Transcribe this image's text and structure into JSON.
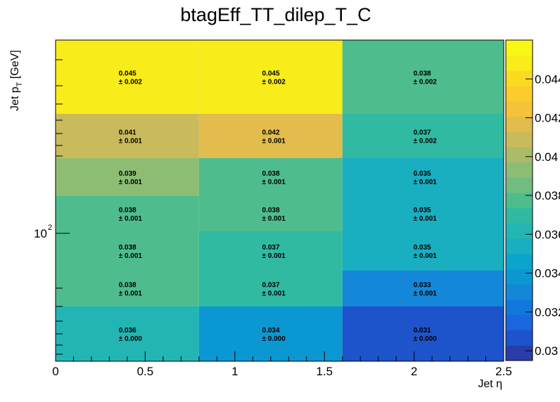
{
  "chart_data": {
    "type": "heatmap",
    "title": "btagEff_TT_dilep_T_C",
    "xlabel": "Jet η",
    "ylabel_main": "Jet p",
    "ylabel_sub": "T",
    "ylabel_unit": " [GeV]",
    "x_edges": [
      0,
      0.8,
      1.6,
      2.5
    ],
    "x_ticks": [
      "0",
      "0.5",
      "1",
      "1.5",
      "2",
      "2.5"
    ],
    "x_tick_values": [
      0,
      0.5,
      1,
      1.5,
      2,
      2.5
    ],
    "y_log": true,
    "y_tick_base": "10",
    "y_tick_exp": "2",
    "uncertainty_prefix": "± ",
    "rows": [
      {
        "values": [
          "0.045",
          "0.045",
          "0.038"
        ],
        "errors": [
          "0.002",
          "0.002",
          "0.002"
        ],
        "num": [
          0.045,
          0.045,
          0.038
        ]
      },
      {
        "values": [
          "0.041",
          "0.042",
          "0.037"
        ],
        "errors": [
          "0.001",
          "0.001",
          "0.002"
        ],
        "num": [
          0.041,
          0.042,
          0.037
        ]
      },
      {
        "values": [
          "0.039",
          "0.038",
          "0.035"
        ],
        "errors": [
          "0.001",
          "0.001",
          "0.001"
        ],
        "num": [
          0.039,
          0.038,
          0.035
        ]
      },
      {
        "values": [
          "0.038",
          "0.038",
          "0.035"
        ],
        "errors": [
          "0.001",
          "0.001",
          "0.001"
        ],
        "num": [
          0.038,
          0.038,
          0.035
        ]
      },
      {
        "values": [
          "0.038",
          "0.037",
          "0.035"
        ],
        "errors": [
          "0.001",
          "0.001",
          "0.001"
        ],
        "num": [
          0.038,
          0.037,
          0.035
        ]
      },
      {
        "values": [
          "0.038",
          "0.037",
          "0.033"
        ],
        "errors": [
          "0.001",
          "0.001",
          "0.001"
        ],
        "num": [
          0.038,
          0.037,
          0.033
        ]
      },
      {
        "values": [
          "0.036",
          "0.034",
          "0.031"
        ],
        "errors": [
          "0.000",
          "0.000",
          "0.000"
        ],
        "num": [
          0.036,
          0.034,
          0.031
        ]
      }
    ],
    "zlim": [
      0.0295,
      0.046
    ],
    "colorbar_labels": [
      "0.044",
      "0.042",
      "0.04",
      "0.038",
      "0.036",
      "0.034",
      "0.032",
      "0.03"
    ],
    "colorbar_label_values": [
      0.044,
      0.042,
      0.04,
      0.038,
      0.036,
      0.034,
      0.032,
      0.03
    ],
    "palette": [
      "#2a3ca8",
      "#1d54cc",
      "#1a66dc",
      "#1277dc",
      "#1487d8",
      "#0b98d2",
      "#0aa4cc",
      "#19aec0",
      "#22b5b3",
      "#30baa2",
      "#4fbc8e",
      "#6fbd80",
      "#8cbd73",
      "#aabb69",
      "#c9bb5c",
      "#e2bc4c",
      "#f4c33a",
      "#fccc2c",
      "#fbdb22",
      "#f8ec1a",
      "#f7f718"
    ]
  }
}
